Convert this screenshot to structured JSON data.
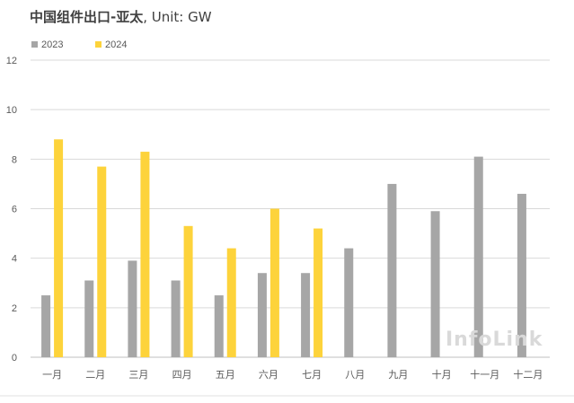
{
  "chart_data": {
    "type": "bar",
    "title": "中国组件出口-亚太",
    "unit": ", Unit: GW",
    "categories": [
      "一月",
      "二月",
      "三月",
      "四月",
      "五月",
      "六月",
      "七月",
      "八月",
      "九月",
      "十月",
      "十一月",
      "十二月"
    ],
    "series": [
      {
        "name": "2023",
        "color": "#a6a6a6",
        "values": [
          2.5,
          3.1,
          3.9,
          3.1,
          2.5,
          3.4,
          3.4,
          4.4,
          7.0,
          5.9,
          8.1,
          6.6
        ]
      },
      {
        "name": "2024",
        "color": "#fdd33b",
        "values": [
          8.8,
          7.7,
          8.3,
          5.3,
          4.4,
          6.0,
          5.2,
          null,
          null,
          null,
          null,
          null
        ]
      }
    ],
    "yticks": [
      "0",
      "2",
      "4",
      "6",
      "8",
      "10",
      "12"
    ],
    "ylim": [
      0,
      12
    ],
    "grid": true,
    "legend": "top-left",
    "watermark": "InfoLink"
  }
}
